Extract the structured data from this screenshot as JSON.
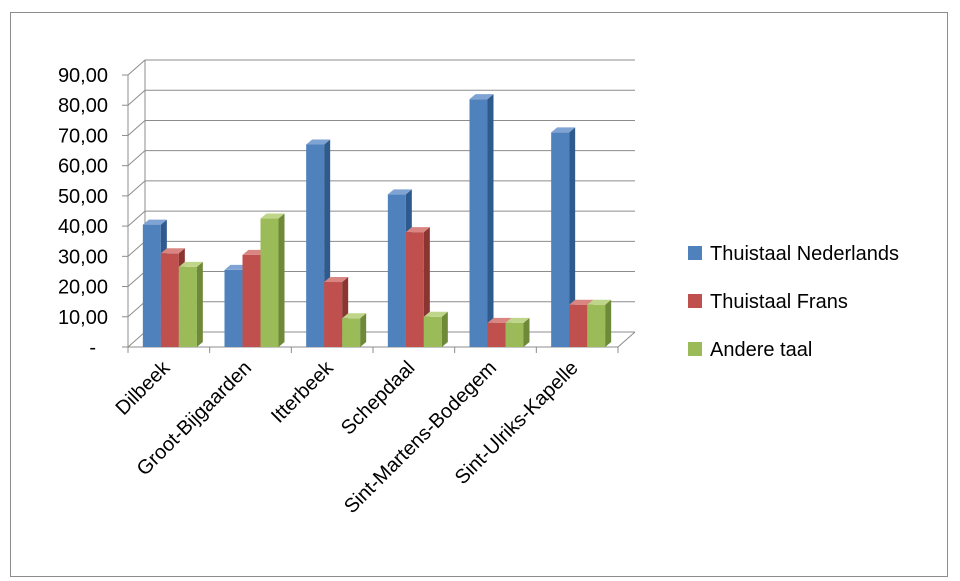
{
  "chart_data": {
    "type": "bar",
    "categories": [
      "Dilbeek",
      "Groot-Bijgaarden",
      "Itterbeek",
      "Schepdaal",
      "Sint-Martens-Bodegem",
      "Sint-Ulriks-Kapelle"
    ],
    "series": [
      {
        "name": "Thuistaal Nederlands",
        "values": [
          40.5,
          25.5,
          67.0,
          50.5,
          82.0,
          71.0
        ],
        "color": "#4F81BD",
        "dark": "#2F5A8E",
        "top": "#7FA3D3"
      },
      {
        "name": "Thuistaal Frans",
        "values": [
          31.0,
          30.5,
          21.5,
          38.0,
          8.0,
          14.0
        ],
        "color": "#C0504D",
        "dark": "#8A3532",
        "top": "#D98581"
      },
      {
        "name": "Andere taal",
        "values": [
          26.5,
          42.5,
          9.5,
          10.0,
          8.0,
          14.0
        ],
        "color": "#9BBB59",
        "dark": "#6E8A38",
        "top": "#BFD58A"
      }
    ],
    "yticks": [
      "-",
      "10,00",
      "20,00",
      "30,00",
      "40,00",
      "50,00",
      "60,00",
      "70,00",
      "80,00",
      "90,00"
    ],
    "ylim": [
      0,
      90
    ],
    "grid": true,
    "legend_position": "right",
    "title": "",
    "xlabel": "",
    "ylabel": ""
  }
}
